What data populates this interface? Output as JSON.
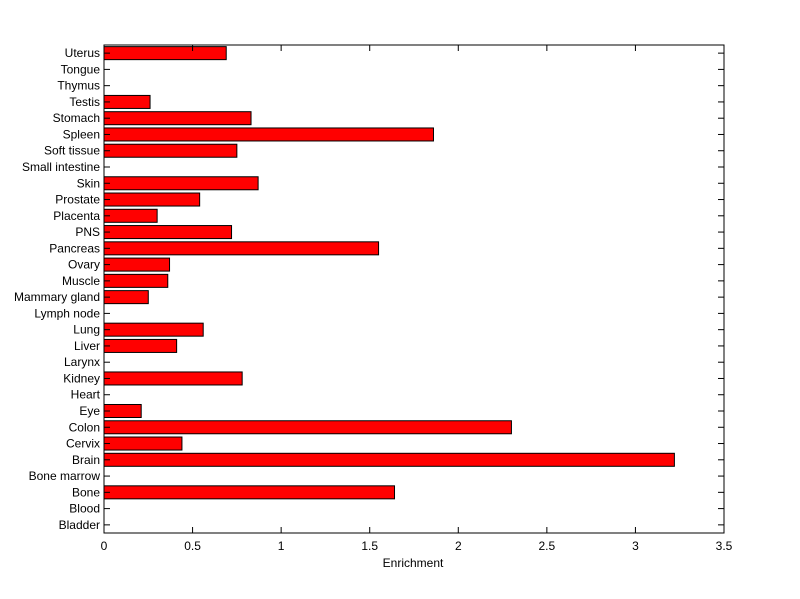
{
  "chart_data": {
    "type": "bar",
    "orientation": "horizontal",
    "categories": [
      "Uterus",
      "Tongue",
      "Thymus",
      "Testis",
      "Stomach",
      "Spleen",
      "Soft tissue",
      "Small intestine",
      "Skin",
      "Prostate",
      "Placenta",
      "PNS",
      "Pancreas",
      "Ovary",
      "Muscle",
      "Mammary gland",
      "Lymph node",
      "Lung",
      "Liver",
      "Larynx",
      "Kidney",
      "Heart",
      "Eye",
      "Colon",
      "Cervix",
      "Brain",
      "Bone marrow",
      "Bone",
      "Blood",
      "Bladder"
    ],
    "values": [
      0.69,
      0,
      0,
      0.26,
      0.83,
      1.86,
      0.75,
      0,
      0.87,
      0.54,
      0.3,
      0.72,
      1.55,
      0.37,
      0.36,
      0.25,
      0,
      0.56,
      0.41,
      0,
      0.78,
      0,
      0.21,
      2.3,
      0.44,
      3.22,
      0,
      1.64,
      0,
      0
    ],
    "title": "",
    "xlabel": "Enrichment",
    "ylabel": "",
    "xlim": [
      0,
      3.5
    ],
    "xticks": [
      "0",
      "0.5",
      "1",
      "1.5",
      "2",
      "2.5",
      "3",
      "3.5"
    ],
    "grid": false,
    "bar_color": "#ff0000",
    "bar_edge_color": "#000000"
  }
}
